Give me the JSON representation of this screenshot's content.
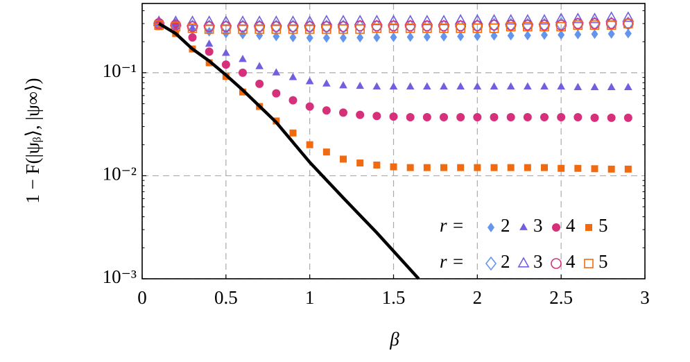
{
  "chart_data": {
    "type": "scatter",
    "xlabel": "β",
    "ylabel": "1 − F(|ψᵦ⟩, |ψ∞⟩)",
    "xlim": [
      0,
      3
    ],
    "ylim": [
      0.001,
      0.47
    ],
    "yscale": "log",
    "grid": true,
    "xticks": [
      0,
      0.5,
      1,
      1.5,
      2,
      2.5,
      3
    ],
    "yticks": [
      {
        "value": 0.001,
        "label": "10⁻³"
      },
      {
        "value": 0.01,
        "label": "10⁻²"
      },
      {
        "value": 0.1,
        "label": "10⁻¹"
      }
    ],
    "legend_prefix": "r =",
    "legend_loc": "lower right",
    "x": [
      0.1,
      0.2,
      0.3,
      0.4,
      0.5,
      0.6,
      0.7,
      0.8,
      0.9,
      1.0,
      1.1,
      1.2,
      1.3,
      1.4,
      1.5,
      1.6,
      1.7,
      1.8,
      1.9,
      2.0,
      2.1,
      2.2,
      2.3,
      2.4,
      2.5,
      2.6,
      2.7,
      2.8,
      2.9
    ],
    "series": [
      {
        "name": "2",
        "color": "#6495ed",
        "marker": "diamond",
        "filled": true,
        "values": [
          0.3,
          0.28,
          0.26,
          0.25,
          0.24,
          0.235,
          0.23,
          0.225,
          0.22,
          0.218,
          0.218,
          0.218,
          0.219,
          0.22,
          0.221,
          0.222,
          0.223,
          0.224,
          0.225,
          0.226,
          0.228,
          0.229,
          0.23,
          0.232,
          0.233,
          0.235,
          0.237,
          0.238,
          0.24
        ]
      },
      {
        "name": "3",
        "color": "#7060e0",
        "marker": "triangle",
        "filled": true,
        "values": [
          0.3,
          0.29,
          0.27,
          0.19,
          0.155,
          0.135,
          0.115,
          0.1,
          0.09,
          0.082,
          0.078,
          0.075,
          0.074,
          0.073,
          0.073,
          0.073,
          0.073,
          0.073,
          0.073,
          0.073,
          0.073,
          0.073,
          0.073,
          0.073,
          0.073,
          0.072,
          0.072,
          0.072,
          0.072
        ]
      },
      {
        "name": "4",
        "color": "#d6307a",
        "marker": "circle",
        "filled": true,
        "values": [
          0.3,
          0.29,
          0.22,
          0.16,
          0.12,
          0.1,
          0.078,
          0.063,
          0.054,
          0.047,
          0.043,
          0.041,
          0.039,
          0.038,
          0.0375,
          0.037,
          0.037,
          0.037,
          0.037,
          0.037,
          0.037,
          0.037,
          0.037,
          0.037,
          0.037,
          0.037,
          0.0365,
          0.0365,
          0.0365
        ]
      },
      {
        "name": "5",
        "color": "#f26a10",
        "marker": "square",
        "filled": true,
        "values": [
          0.28,
          0.24,
          0.17,
          0.125,
          0.092,
          0.065,
          0.047,
          0.034,
          0.026,
          0.02,
          0.017,
          0.0145,
          0.0133,
          0.0127,
          0.0122,
          0.012,
          0.012,
          0.012,
          0.012,
          0.012,
          0.012,
          0.012,
          0.012,
          0.012,
          0.0118,
          0.0118,
          0.0117,
          0.0116,
          0.0116
        ]
      },
      {
        "name": "2",
        "color": "#6495ed",
        "marker": "diamond",
        "filled": false,
        "values": [
          0.3,
          0.29,
          0.28,
          0.28,
          0.28,
          0.28,
          0.28,
          0.28,
          0.28,
          0.28,
          0.28,
          0.28,
          0.28,
          0.28,
          0.28,
          0.28,
          0.28,
          0.28,
          0.28,
          0.285,
          0.29,
          0.29,
          0.29,
          0.29,
          0.295,
          0.295,
          0.3,
          0.3,
          0.3
        ]
      },
      {
        "name": "3",
        "color": "#7060e0",
        "marker": "triangle",
        "filled": false,
        "values": [
          0.31,
          0.31,
          0.31,
          0.31,
          0.31,
          0.31,
          0.31,
          0.31,
          0.31,
          0.31,
          0.315,
          0.315,
          0.315,
          0.315,
          0.315,
          0.315,
          0.315,
          0.315,
          0.32,
          0.32,
          0.32,
          0.32,
          0.32,
          0.32,
          0.33,
          0.33,
          0.33,
          0.34,
          0.34
        ]
      },
      {
        "name": "4",
        "color": "#d6307a",
        "marker": "circle",
        "filled": false,
        "values": [
          0.3,
          0.29,
          0.28,
          0.28,
          0.28,
          0.28,
          0.28,
          0.28,
          0.28,
          0.28,
          0.28,
          0.28,
          0.285,
          0.285,
          0.285,
          0.285,
          0.285,
          0.285,
          0.285,
          0.285,
          0.29,
          0.29,
          0.29,
          0.29,
          0.29,
          0.3,
          0.3,
          0.3,
          0.3
        ]
      },
      {
        "name": "5",
        "color": "#f26a10",
        "marker": "square",
        "filled": false,
        "values": [
          0.29,
          0.28,
          0.27,
          0.265,
          0.265,
          0.265,
          0.265,
          0.265,
          0.265,
          0.265,
          0.265,
          0.265,
          0.265,
          0.27,
          0.27,
          0.27,
          0.27,
          0.27,
          0.27,
          0.27,
          0.27,
          0.28,
          0.28,
          0.28,
          0.28,
          0.29,
          0.29,
          0.29,
          0.3
        ]
      },
      {
        "color": "#000000",
        "marker": "line",
        "x": [
          0.1,
          0.2,
          0.3,
          0.4,
          0.5,
          0.6,
          0.8,
          1.0,
          1.2,
          1.4,
          1.65
        ],
        "values": [
          0.3,
          0.24,
          0.17,
          0.13,
          0.095,
          0.068,
          0.033,
          0.0135,
          0.0061,
          0.0028,
          0.001
        ]
      }
    ]
  }
}
